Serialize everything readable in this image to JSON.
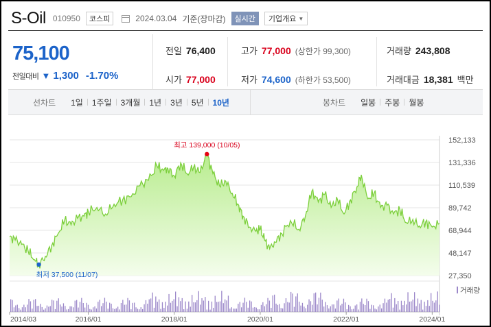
{
  "header": {
    "logo": "S-Oil",
    "code": "010950",
    "market": "코스피",
    "date": "2024.03.04",
    "basis": "기준(장마감)",
    "live": "실시간",
    "overview": "기업개요"
  },
  "quote": {
    "price": "75,100",
    "change_label": "전일대비",
    "change_arrow": "▼",
    "change_amount": "1,300",
    "change_pct": "-1.70%",
    "prev_close_label": "전일",
    "prev_close": "76,400",
    "high_label": "고가",
    "high": "77,000",
    "upper_limit": "(상한가 99,300)",
    "volume_label": "거래량",
    "volume": "243,808",
    "open_label": "시가",
    "open": "77,000",
    "low_label": "저가",
    "low": "74,600",
    "lower_limit": "(하한가 53,500)",
    "amount_label": "거래대금",
    "amount": "18,381",
    "amount_unit": "백만"
  },
  "tabs": {
    "line_title": "선차트",
    "line_items": [
      "1일",
      "1주일",
      "3개월",
      "1년",
      "3년",
      "5년",
      "10년"
    ],
    "active_line": "10년",
    "candle_title": "봉차트",
    "candle_items": [
      "일봉",
      "주봉",
      "월봉"
    ]
  },
  "colors": {
    "up": "#d9001b",
    "down": "#1c63c9",
    "line": "#7ccf3c",
    "volume": "#9b87c9"
  },
  "chart_data": {
    "type": "area",
    "y_ticks": [
      "152,133",
      "131,336",
      "110,539",
      "89,742",
      "68,944",
      "48,147",
      "27,350"
    ],
    "ylim": [
      27350,
      152133
    ],
    "x_ticks": [
      "2014/03",
      "2016/01",
      "2018/01",
      "2020/01",
      "2022/01",
      "2024/01"
    ],
    "xlim": [
      2014.17,
      2024.17
    ],
    "max_label": "최고 139,000 (10/05)",
    "min_label": "최저 37,500 (11/07)",
    "volume_legend": "거래량",
    "series": [
      {
        "x": [
          2014.17,
          2014.3,
          2014.45,
          2014.6,
          2014.75,
          2014.85,
          2015.0,
          2015.15,
          2015.3,
          2015.45,
          2015.6,
          2015.75,
          2015.9,
          2016.0,
          2016.2,
          2016.4,
          2016.6,
          2016.8,
          2017.0,
          2017.2,
          2017.4,
          2017.6,
          2017.75,
          2017.85,
          2018.0,
          2018.15,
          2018.3,
          2018.45,
          2018.6,
          2018.76,
          2018.9,
          2019.05,
          2019.2,
          2019.35,
          2019.5,
          2019.6,
          2019.75,
          2019.9,
          2020.0,
          2020.1,
          2020.22,
          2020.35,
          2020.5,
          2020.7,
          2020.9,
          2021.05,
          2021.2,
          2021.35,
          2021.5,
          2021.65,
          2021.8,
          2021.95,
          2022.1,
          2022.25,
          2022.35,
          2022.5,
          2022.65,
          2022.8,
          2022.95,
          2023.1,
          2023.25,
          2023.4,
          2023.55,
          2023.7,
          2023.85,
          2024.0,
          2024.17
        ],
        "values": [
          63000,
          60000,
          56000,
          50000,
          42000,
          37500,
          45000,
          55000,
          66000,
          78000,
          74000,
          80000,
          82000,
          86000,
          90000,
          84000,
          93000,
          97000,
          100000,
          110000,
          115000,
          128000,
          124000,
          126000,
          119000,
          131000,
          121000,
          127000,
          122000,
          139000,
          121000,
          110000,
          114000,
          103000,
          92000,
          82000,
          72000,
          68000,
          70000,
          60000,
          52000,
          58000,
          66000,
          78000,
          70000,
          82000,
          105000,
          95000,
          102000,
          90000,
          97000,
          84000,
          97000,
          109000,
          120000,
          98000,
          103000,
          90000,
          92000,
          84000,
          88000,
          76000,
          79000,
          73000,
          77000,
          72000,
          75100
        ]
      }
    ]
  }
}
